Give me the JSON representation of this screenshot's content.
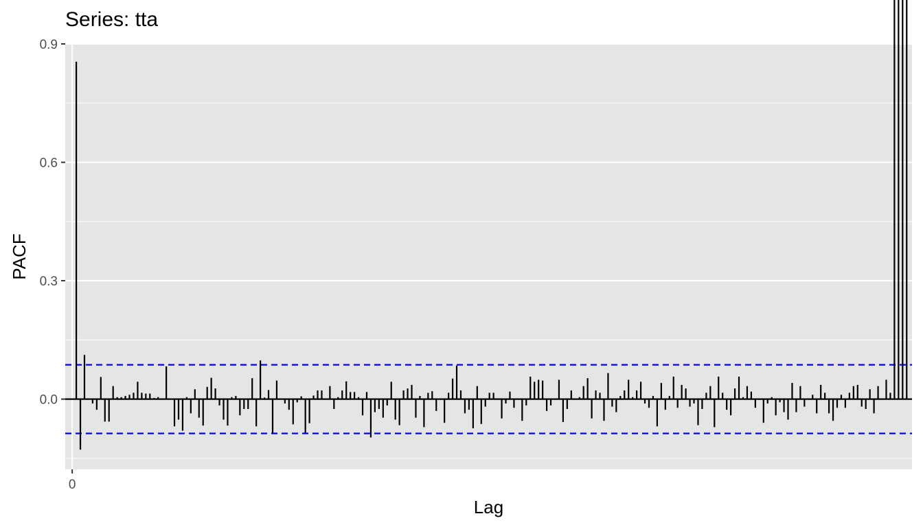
{
  "chart_data": {
    "type": "bar",
    "title": "Series: tta",
    "xlabel": "Lag",
    "ylabel": "PACF",
    "x_ticks": [
      0
    ],
    "x_tick_labels": [
      "0"
    ],
    "y_ticks": [
      0.0,
      0.3,
      0.6,
      0.9
    ],
    "y_tick_labels": [
      "0.0",
      "0.3",
      "0.6",
      "0.9"
    ],
    "xlim": [
      -1.7,
      205.3
    ],
    "ylim": [
      -0.178,
      0.9
    ],
    "grid": true,
    "confidence_band": {
      "upper": 0.087,
      "lower": -0.087,
      "color": "#0000ff",
      "style": "dashed"
    },
    "lags": [
      1,
      2,
      3,
      4,
      5,
      6,
      7,
      8,
      9,
      10,
      11,
      12,
      13,
      14,
      15,
      16,
      17,
      18,
      19,
      20,
      21,
      22,
      23,
      24,
      25,
      26,
      27,
      28,
      29,
      30,
      31,
      32,
      33,
      34,
      35,
      36,
      37,
      38,
      39,
      40,
      41,
      42,
      43,
      44,
      45,
      46,
      47,
      48,
      49,
      50,
      51,
      52,
      53,
      54,
      55,
      56,
      57,
      58,
      59,
      60,
      61,
      62,
      63,
      64,
      65,
      66,
      67,
      68,
      69,
      70,
      71,
      72,
      73,
      74,
      75,
      76,
      77,
      78,
      79,
      80,
      81,
      82,
      83,
      84,
      85,
      86,
      87,
      88,
      89,
      90,
      91,
      92,
      93,
      94,
      95,
      96,
      97,
      98,
      99,
      100,
      101,
      102,
      103,
      104,
      105,
      106,
      107,
      108,
      109,
      110,
      111,
      112,
      113,
      114,
      115,
      116,
      117,
      118,
      119,
      120,
      121,
      122,
      123,
      124,
      125,
      126,
      127,
      128,
      129,
      130,
      131,
      132,
      133,
      134,
      135,
      136,
      137,
      138,
      139,
      140,
      141,
      142,
      143,
      144,
      145,
      146,
      147,
      148,
      149,
      150,
      151,
      152,
      153,
      154,
      155,
      156,
      157,
      158,
      159,
      160,
      161,
      162,
      163,
      164,
      165,
      166,
      167,
      168,
      169,
      170,
      171,
      172,
      173,
      174,
      175,
      176,
      177,
      178,
      179,
      180,
      181,
      182,
      183,
      184,
      185,
      186,
      187,
      188,
      189,
      190,
      191,
      192,
      193,
      194,
      195,
      196,
      197,
      198,
      199,
      200,
      201,
      202,
      203,
      204
    ],
    "values": [
      0.855,
      -0.128,
      0.112,
      0.0,
      -0.011,
      -0.027,
      0.056,
      -0.057,
      -0.057,
      0.033,
      0.005,
      0.005,
      0.008,
      0.011,
      0.016,
      0.044,
      0.016,
      0.014,
      0.014,
      0.003,
      0.005,
      0.0,
      0.083,
      0.0,
      -0.069,
      -0.052,
      -0.08,
      0.005,
      -0.036,
      0.025,
      -0.047,
      -0.067,
      0.031,
      0.054,
      0.027,
      -0.016,
      -0.052,
      -0.067,
      0.005,
      0.008,
      -0.041,
      -0.025,
      -0.025,
      0.053,
      -0.069,
      0.098,
      0.004,
      0.023,
      -0.087,
      0.047,
      0.0,
      -0.011,
      -0.027,
      -0.064,
      -0.008,
      0.007,
      -0.085,
      -0.061,
      0.009,
      0.022,
      0.022,
      0.0,
      0.033,
      -0.025,
      0.005,
      0.022,
      0.045,
      0.018,
      0.018,
      0.005,
      -0.041,
      0.018,
      -0.097,
      -0.033,
      -0.025,
      -0.047,
      -0.016,
      0.044,
      -0.052,
      -0.066,
      0.022,
      0.027,
      0.036,
      -0.047,
      0.008,
      -0.071,
      0.016,
      0.02,
      -0.03,
      0.0,
      -0.06,
      0.016,
      0.052,
      0.085,
      0.022,
      -0.036,
      -0.027,
      -0.074,
      0.033,
      -0.063,
      -0.019,
      0.016,
      0.016,
      0.0,
      -0.049,
      -0.011,
      0.019,
      -0.022,
      0.0,
      -0.055,
      -0.016,
      0.057,
      0.044,
      0.049,
      0.047,
      -0.03,
      -0.016,
      0.0,
      0.049,
      -0.058,
      -0.025,
      0.022,
      0.0,
      0.005,
      0.033,
      0.053,
      -0.049,
      0.022,
      0.016,
      -0.055,
      0.066,
      -0.019,
      -0.033,
      0.008,
      0.022,
      0.049,
      0.005,
      0.022,
      0.044,
      -0.011,
      -0.022,
      0.008,
      -0.069,
      0.041,
      -0.027,
      0.008,
      0.057,
      -0.022,
      0.036,
      0.027,
      -0.019,
      -0.011,
      -0.066,
      -0.025,
      0.016,
      0.033,
      -0.071,
      0.057,
      0.016,
      -0.027,
      -0.041,
      0.027,
      0.057,
      0.005,
      0.033,
      0.019,
      -0.022,
      0.0,
      -0.06,
      -0.011,
      0.005,
      -0.041,
      -0.008,
      -0.033,
      -0.052,
      0.041,
      -0.033,
      0.033,
      -0.019,
      0.0,
      0.011,
      -0.036,
      0.036,
      0.016,
      -0.036,
      -0.055,
      -0.022,
      0.011,
      -0.022,
      0.016,
      0.033,
      0.036,
      -0.019,
      -0.025,
      0.025,
      -0.036,
      0.033,
      0.0,
      0.049,
      0.016
    ]
  }
}
